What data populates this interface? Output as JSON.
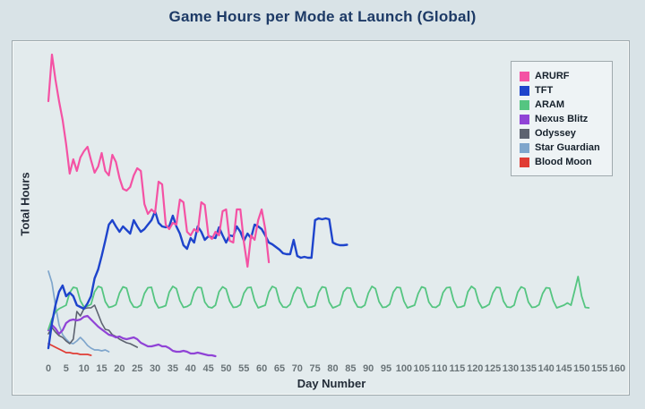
{
  "title": "Game Hours per Mode at Launch (Global)",
  "chart_data": {
    "type": "line",
    "title": "Game Hours per Mode at Launch (Global)",
    "xlabel": "Day Number",
    "ylabel": "Total Hours",
    "xlim": [
      0,
      160
    ],
    "ylim": [
      0,
      7200
    ],
    "x_ticks": [
      0,
      5,
      10,
      15,
      20,
      25,
      30,
      35,
      40,
      45,
      50,
      55,
      60,
      65,
      70,
      75,
      80,
      85,
      90,
      95,
      100,
      105,
      110,
      115,
      120,
      125,
      130,
      135,
      140,
      145,
      150,
      155,
      160
    ],
    "grid": false,
    "legend_position": "top-right",
    "x_unit_days": 1,
    "series": [
      {
        "name": "ARURF",
        "color": "#f452a4",
        "x_start": 0,
        "values": [
          5860,
          6900,
          6340,
          5860,
          5440,
          4900,
          4240,
          4560,
          4300,
          4600,
          4740,
          4840,
          4540,
          4260,
          4400,
          4700,
          4300,
          4200,
          4660,
          4500,
          4140,
          3900,
          3860,
          3940,
          4200,
          4360,
          4300,
          3560,
          3340,
          3440,
          3360,
          4060,
          4000,
          3100,
          3000,
          3140,
          3100,
          3660,
          3600,
          2940,
          2860,
          3000,
          2940,
          3600,
          3540,
          2860,
          2780,
          2940,
          2860,
          3400,
          3440,
          2740,
          2700,
          3440,
          3440,
          2700,
          2160,
          2860,
          2760,
          3200,
          3440,
          3000,
          2260
        ]
      },
      {
        "name": "TFT",
        "color": "#1e44cc",
        "x_start": 0,
        "values": [
          340,
          900,
          1300,
          1600,
          1740,
          1500,
          1580,
          1500,
          1300,
          1260,
          1220,
          1340,
          1500,
          1900,
          2100,
          2400,
          2740,
          3100,
          3200,
          3060,
          2940,
          3060,
          2980,
          2900,
          3200,
          3060,
          2940,
          3000,
          3100,
          3200,
          3400,
          3140,
          3060,
          3040,
          3060,
          3300,
          3060,
          2900,
          2640,
          2560,
          2800,
          2700,
          3060,
          2940,
          2760,
          2840,
          2820,
          2800,
          3040,
          2860,
          2700,
          2860,
          2840,
          3060,
          2940,
          2740,
          2900,
          2800,
          3100,
          3060,
          3000,
          2860,
          2700,
          2660,
          2600,
          2540,
          2460,
          2440,
          2440,
          2760,
          2400,
          2360,
          2380,
          2360,
          2360,
          3200,
          3240,
          3220,
          3240,
          3220,
          2700,
          2660,
          2640,
          2640,
          2650
        ]
      },
      {
        "name": "ARAM",
        "color": "#55c581",
        "x_start": 0,
        "values": [
          760,
          1000,
          1150,
          1220,
          1260,
          1300,
          1580,
          1700,
          1680,
          1400,
          1260,
          1280,
          1320,
          1600,
          1720,
          1690,
          1380,
          1250,
          1270,
          1310,
          1570,
          1710,
          1680,
          1390,
          1260,
          1250,
          1300,
          1560,
          1690,
          1700,
          1380,
          1240,
          1260,
          1290,
          1590,
          1720,
          1670,
          1400,
          1250,
          1270,
          1320,
          1580,
          1700,
          1690,
          1370,
          1260,
          1240,
          1300,
          1600,
          1710,
          1660,
          1390,
          1250,
          1260,
          1310,
          1570,
          1690,
          1700,
          1400,
          1240,
          1270,
          1300,
          1590,
          1720,
          1680,
          1380,
          1260,
          1250,
          1320,
          1560,
          1700,
          1670,
          1390,
          1250,
          1260,
          1290,
          1580,
          1710,
          1690,
          1370,
          1240,
          1270,
          1310,
          1600,
          1690,
          1680,
          1400,
          1260,
          1250,
          1300,
          1570,
          1720,
          1670,
          1380,
          1250,
          1260,
          1320,
          1590,
          1700,
          1690,
          1390,
          1240,
          1270,
          1300,
          1560,
          1710,
          1680,
          1370,
          1260,
          1250,
          1310,
          1580,
          1690,
          1700,
          1400,
          1250,
          1260,
          1290,
          1600,
          1720,
          1660,
          1380,
          1240,
          1270,
          1320,
          1570,
          1700,
          1690,
          1390,
          1260,
          1250,
          1300,
          1590,
          1710,
          1670,
          1370,
          1250,
          1260,
          1310,
          1560,
          1690,
          1680,
          1400,
          1240,
          1270,
          1300,
          1350,
          1300,
          1620,
          1940,
          1500,
          1250,
          1240
        ]
      },
      {
        "name": "Nexus Blitz",
        "color": "#9043d6",
        "x_start": 0,
        "values": [
          740,
          860,
          780,
          660,
          740,
          900,
          960,
          980,
          960,
          980,
          1040,
          1060,
          980,
          900,
          820,
          760,
          700,
          640,
          620,
          580,
          600,
          560,
          540,
          560,
          580,
          540,
          460,
          420,
          380,
          380,
          400,
          420,
          380,
          380,
          340,
          280,
          260,
          260,
          280,
          260,
          220,
          220,
          240,
          220,
          200,
          180,
          180,
          160
        ]
      },
      {
        "name": "Odyssey",
        "color": "#5d6370",
        "x_start": 0,
        "values": [
          660,
          800,
          700,
          620,
          580,
          500,
          440,
          540,
          1160,
          1060,
          1220,
          1240,
          1240,
          1300,
          1100,
          900,
          760,
          740,
          640,
          600,
          540,
          500,
          460,
          440,
          400,
          360
        ]
      },
      {
        "name": "Star Guardian",
        "color": "#7fa6cc",
        "x_start": 0,
        "values": [
          2060,
          1800,
          1300,
          860,
          640,
          540,
          460,
          440,
          500,
          580,
          500,
          400,
          340,
          300,
          300,
          280,
          300,
          260
        ]
      },
      {
        "name": "Blood Moon",
        "color": "#e03c34",
        "x_start": 0,
        "values": [
          440,
          400,
          360,
          320,
          280,
          240,
          240,
          220,
          220,
          200,
          200,
          200,
          180
        ]
      }
    ]
  }
}
